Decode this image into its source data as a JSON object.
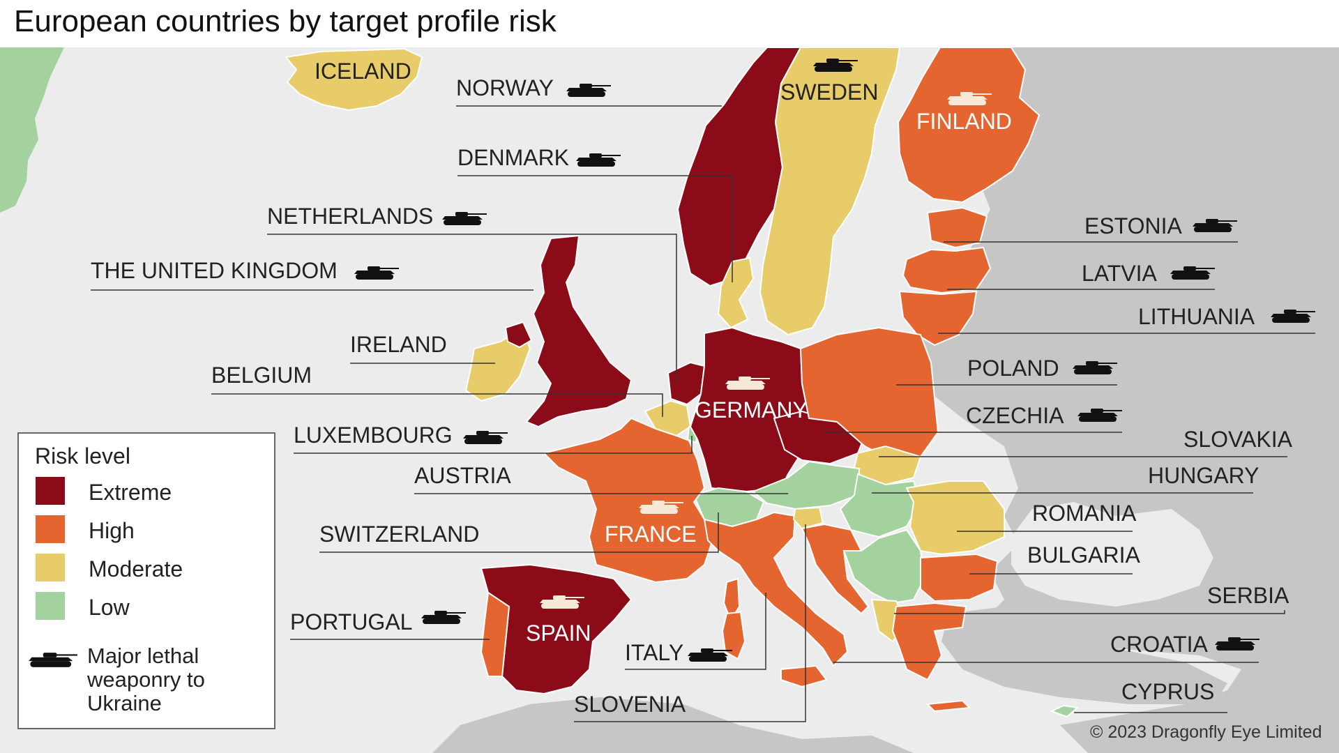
{
  "title": "European countries by target profile risk",
  "colors": {
    "extreme": "#8b0b19",
    "high": "#e46530",
    "moderate": "#e8cc6a",
    "low": "#a3d29e",
    "non_eu": "#c6c6c6",
    "sea": "#ececec",
    "border": "#ffffff"
  },
  "legend": {
    "title": "Risk level",
    "items": [
      {
        "label": "Extreme",
        "color": "#8b0b19"
      },
      {
        "label": "High",
        "color": "#e46530"
      },
      {
        "label": "Moderate",
        "color": "#e8cc6a"
      },
      {
        "label": "Low",
        "color": "#a3d29e"
      }
    ],
    "tank_label": "Major lethal weaponry to Ukraine",
    "tank_icon": "tank-icon"
  },
  "countries": {
    "iceland": {
      "name": "ICELAND",
      "risk": "Moderate",
      "weaponry": false
    },
    "norway": {
      "name": "NORWAY",
      "risk": "Extreme",
      "weaponry": true
    },
    "sweden": {
      "name": "SWEDEN",
      "risk": "Moderate",
      "weaponry": true
    },
    "finland": {
      "name": "FINLAND",
      "risk": "High",
      "weaponry": true
    },
    "denmark": {
      "name": "DENMARK",
      "risk": "Moderate",
      "weaponry": true
    },
    "netherlands": {
      "name": "NETHERLANDS",
      "risk": "Extreme",
      "weaponry": true
    },
    "uk": {
      "name": "THE UNITED KINGDOM",
      "risk": "Extreme",
      "weaponry": true
    },
    "ireland": {
      "name": "IRELAND",
      "risk": "Moderate",
      "weaponry": false
    },
    "belgium": {
      "name": "BELGIUM",
      "risk": "Moderate",
      "weaponry": false
    },
    "luxembourg": {
      "name": "LUXEMBOURG",
      "risk": "Low",
      "weaponry": true
    },
    "germany": {
      "name": "GERMANY",
      "risk": "Extreme",
      "weaponry": true
    },
    "austria": {
      "name": "AUSTRIA",
      "risk": "Low",
      "weaponry": false
    },
    "switzerland": {
      "name": "SWITZERLAND",
      "risk": "Low",
      "weaponry": false
    },
    "france": {
      "name": "FRANCE",
      "risk": "High",
      "weaponry": true
    },
    "spain": {
      "name": "SPAIN",
      "risk": "Extreme",
      "weaponry": true
    },
    "portugal": {
      "name": "PORTUGAL",
      "risk": "High",
      "weaponry": true
    },
    "italy": {
      "name": "ITALY",
      "risk": "High",
      "weaponry": true
    },
    "slovenia": {
      "name": "SLOVENIA",
      "risk": "Moderate",
      "weaponry": false
    },
    "estonia": {
      "name": "ESTONIA",
      "risk": "High",
      "weaponry": true
    },
    "latvia": {
      "name": "LATVIA",
      "risk": "High",
      "weaponry": true
    },
    "lithuania": {
      "name": "LITHUANIA",
      "risk": "High",
      "weaponry": true
    },
    "poland": {
      "name": "POLAND",
      "risk": "High",
      "weaponry": true
    },
    "czechia": {
      "name": "CZECHIA",
      "risk": "Extreme",
      "weaponry": true
    },
    "slovakia": {
      "name": "SLOVAKIA",
      "risk": "Moderate",
      "weaponry": false
    },
    "hungary": {
      "name": "HUNGARY",
      "risk": "Low",
      "weaponry": false
    },
    "romania": {
      "name": "ROMANIA",
      "risk": "Moderate",
      "weaponry": false
    },
    "bulgaria": {
      "name": "BULGARIA",
      "risk": "High",
      "weaponry": false
    },
    "serbia": {
      "name": "SERBIA",
      "risk": "Low",
      "weaponry": false
    },
    "croatia": {
      "name": "CROATIA",
      "risk": "High",
      "weaponry": true
    },
    "cyprus": {
      "name": "CYPRUS",
      "risk": "Low",
      "weaponry": false
    }
  },
  "copyright": "© 2023 Dragonfly Eye Limited"
}
